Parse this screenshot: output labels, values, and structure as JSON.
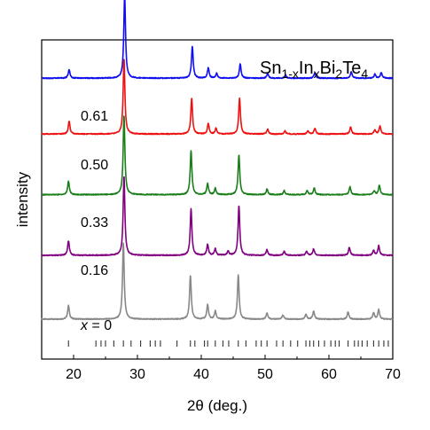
{
  "chart_data": {
    "type": "line",
    "title": {
      "base": "Sn",
      "sub1": "1-x",
      "mid1": "In",
      "sub2": "x",
      "mid2": "Bi",
      "sub3": "2",
      "mid3": "Te",
      "sub4": "4"
    },
    "xlabel": "2θ (deg.)",
    "ylabel": "intensity",
    "xlim": [
      15,
      70
    ],
    "xticks": [
      20,
      30,
      40,
      50,
      60,
      70
    ],
    "x_var_label": "x",
    "x_equals": " = ",
    "series": [
      {
        "name": "0",
        "color": "#888888",
        "baseline_frac": 0.125,
        "label": "0",
        "peaks": [
          [
            19.2,
            0.17
          ],
          [
            27.8,
            0.95
          ],
          [
            38.3,
            0.55
          ],
          [
            41.0,
            0.18
          ],
          [
            42.2,
            0.1
          ],
          [
            45.8,
            0.55
          ],
          [
            50.3,
            0.08
          ],
          [
            52.8,
            0.05
          ],
          [
            56.4,
            0.06
          ],
          [
            57.6,
            0.1
          ],
          [
            63.0,
            0.09
          ],
          [
            67.0,
            0.08
          ],
          [
            67.8,
            0.12
          ]
        ]
      },
      {
        "name": "0.16",
        "color": "#800080",
        "baseline_frac": 0.325,
        "label": "0.16",
        "peaks": [
          [
            19.2,
            0.18
          ],
          [
            27.9,
            1.0
          ],
          [
            38.4,
            0.58
          ],
          [
            41.0,
            0.14
          ],
          [
            42.2,
            0.08
          ],
          [
            44.2,
            0.05
          ],
          [
            45.9,
            0.62
          ],
          [
            50.3,
            0.07
          ],
          [
            53.0,
            0.05
          ],
          [
            56.5,
            0.05
          ],
          [
            57.6,
            0.08
          ],
          [
            63.2,
            0.1
          ],
          [
            67.0,
            0.06
          ],
          [
            67.8,
            0.12
          ]
        ]
      },
      {
        "name": "0.33",
        "color": "#1a7f1a",
        "baseline_frac": 0.515,
        "label": "0.33",
        "peaks": [
          [
            19.2,
            0.17
          ],
          [
            27.9,
            1.0
          ],
          [
            38.4,
            0.55
          ],
          [
            41.0,
            0.14
          ],
          [
            42.2,
            0.08
          ],
          [
            45.9,
            0.5
          ],
          [
            50.3,
            0.07
          ],
          [
            53.0,
            0.05
          ],
          [
            56.6,
            0.05
          ],
          [
            57.7,
            0.08
          ],
          [
            63.3,
            0.1
          ],
          [
            67.1,
            0.05
          ],
          [
            67.9,
            0.12
          ]
        ]
      },
      {
        "name": "0.50",
        "color": "#ee1111",
        "baseline_frac": 0.705,
        "label": "0.50",
        "peaks": [
          [
            19.3,
            0.16
          ],
          [
            27.9,
            0.95
          ],
          [
            38.5,
            0.45
          ],
          [
            41.1,
            0.13
          ],
          [
            42.3,
            0.07
          ],
          [
            46.0,
            0.45
          ],
          [
            50.4,
            0.06
          ],
          [
            53.1,
            0.04
          ],
          [
            56.7,
            0.04
          ],
          [
            57.8,
            0.07
          ],
          [
            63.4,
            0.09
          ],
          [
            67.2,
            0.05
          ],
          [
            68.0,
            0.1
          ]
        ]
      },
      {
        "name": "0.61",
        "color": "#1010ee",
        "baseline_frac": 0.88,
        "label": "0.61",
        "peaks": [
          [
            19.3,
            0.11
          ],
          [
            28.0,
            1.05
          ],
          [
            38.6,
            0.4
          ],
          [
            41.1,
            0.13
          ],
          [
            42.4,
            0.06
          ],
          [
            46.1,
            0.18
          ],
          [
            50.4,
            0.06
          ],
          [
            53.2,
            0.04
          ],
          [
            57.8,
            0.07
          ],
          [
            63.5,
            0.08
          ],
          [
            67.2,
            0.05
          ],
          [
            68.2,
            0.07
          ]
        ]
      }
    ],
    "reference_ticks": [
      19.2,
      23.5,
      24.3,
      25.0,
      26.3,
      27.8,
      29.0,
      30.5,
      32.0,
      32.8,
      33.6,
      36.2,
      38.3,
      39.0,
      40.5,
      41.0,
      42.2,
      43.4,
      44.3,
      45.8,
      47.0,
      48.6,
      49.4,
      50.3,
      51.8,
      52.8,
      54.0,
      55.1,
      56.4,
      57.0,
      57.6,
      58.4,
      59.3,
      60.3,
      61.0,
      61.6,
      63.0,
      64.0,
      64.6,
      65.2,
      66.0,
      67.0,
      67.8,
      68.6,
      69.3
    ]
  }
}
